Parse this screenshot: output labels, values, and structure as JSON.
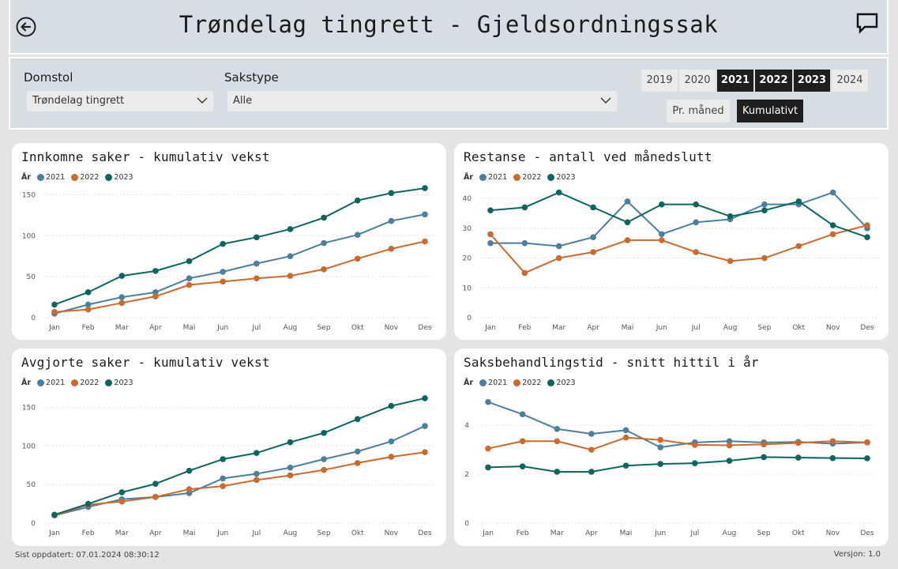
{
  "header": {
    "title": "Trøndelag tingrett - Gjeldsordningssak"
  },
  "filters": {
    "domstol_label": "Domstol",
    "domstol_value": "Trøndelag tingrett",
    "sakstype_label": "Sakstype",
    "sakstype_value": "Alle",
    "years": [
      {
        "label": "2019",
        "selected": false
      },
      {
        "label": "2020",
        "selected": false
      },
      {
        "label": "2021",
        "selected": true
      },
      {
        "label": "2022",
        "selected": true
      },
      {
        "label": "2023",
        "selected": true
      },
      {
        "label": "2024",
        "selected": false
      }
    ],
    "mode_monthly": "Pr. måned",
    "mode_cumulative": "Kumulativt"
  },
  "colors": {
    "2021": "#4a7fa0",
    "2022": "#cc6a2e",
    "2023": "#0c6660"
  },
  "footer": {
    "updated": "Sist oppdatert: 07.01.2024 08:30:12",
    "version": "Versjon: 1.0"
  },
  "chart_data": [
    {
      "type": "line",
      "title": "Innkomne saker - kumulativ vekst",
      "legend_title": "År",
      "categories": [
        "Jan",
        "Feb",
        "Mar",
        "Apr",
        "Mai",
        "Jun",
        "Jul",
        "Aug",
        "Sep",
        "Okt",
        "Nov",
        "Des"
      ],
      "ylim": [
        0,
        160
      ],
      "yticks": [
        0,
        50,
        100,
        150
      ],
      "series": [
        {
          "name": "2021",
          "values": [
            5,
            16,
            25,
            31,
            48,
            56,
            66,
            75,
            91,
            101,
            118,
            126
          ]
        },
        {
          "name": "2022",
          "values": [
            7,
            10,
            18,
            26,
            40,
            44,
            48,
            51,
            59,
            72,
            84,
            93
          ]
        },
        {
          "name": "2023",
          "values": [
            16,
            31,
            51,
            57,
            69,
            90,
            98,
            108,
            122,
            143,
            152,
            158
          ]
        }
      ]
    },
    {
      "type": "line",
      "title": "Restanse - antall ved månedslutt",
      "legend_title": "År",
      "categories": [
        "Jan",
        "Feb",
        "Mar",
        "Apr",
        "Mai",
        "Jun",
        "Jul",
        "Aug",
        "Sep",
        "Okt",
        "Nov",
        "Des"
      ],
      "ylim": [
        0,
        44
      ],
      "yticks": [
        0,
        10,
        20,
        30,
        40
      ],
      "series": [
        {
          "name": "2021",
          "values": [
            25,
            25,
            24,
            27,
            39,
            28,
            32,
            33,
            38,
            38,
            42,
            30
          ]
        },
        {
          "name": "2022",
          "values": [
            28,
            15,
            20,
            22,
            26,
            26,
            22,
            19,
            20,
            24,
            28,
            31
          ]
        },
        {
          "name": "2023",
          "values": [
            36,
            37,
            42,
            37,
            32,
            38,
            38,
            34,
            36,
            39,
            31,
            27
          ]
        }
      ]
    },
    {
      "type": "line",
      "title": "Avgjorte saker - kumulativ vekst",
      "legend_title": "År",
      "categories": [
        "Jan",
        "Feb",
        "Mar",
        "Apr",
        "Mai",
        "Jun",
        "Jul",
        "Aug",
        "Sep",
        "Okt",
        "Nov",
        "Des"
      ],
      "ylim": [
        0,
        165
      ],
      "yticks": [
        0,
        50,
        100,
        150
      ],
      "series": [
        {
          "name": "2021",
          "values": [
            10,
            21,
            31,
            34,
            39,
            58,
            64,
            72,
            83,
            93,
            106,
            126
          ]
        },
        {
          "name": "2022",
          "values": [
            10,
            24,
            28,
            34,
            44,
            48,
            56,
            62,
            69,
            78,
            86,
            92
          ]
        },
        {
          "name": "2023",
          "values": [
            11,
            25,
            40,
            51,
            68,
            83,
            91,
            105,
            117,
            135,
            152,
            162
          ]
        }
      ]
    },
    {
      "type": "line",
      "title": "Saksbehandlingstid - snitt hittil i år",
      "legend_title": "År",
      "categories": [
        "Jan",
        "Feb",
        "Mar",
        "Apr",
        "Mai",
        "Jun",
        "Jul",
        "Aug",
        "Sep",
        "Okt",
        "Nov",
        "Des"
      ],
      "ylim": [
        0,
        5.2
      ],
      "yticks": [
        0,
        2,
        4
      ],
      "series": [
        {
          "name": "2021",
          "values": [
            4.95,
            4.45,
            3.85,
            3.65,
            3.8,
            3.1,
            3.3,
            3.35,
            3.3,
            3.32,
            3.25,
            3.3
          ]
        },
        {
          "name": "2022",
          "values": [
            3.05,
            3.35,
            3.35,
            3.0,
            3.5,
            3.4,
            3.2,
            3.18,
            3.22,
            3.28,
            3.35,
            3.3
          ]
        },
        {
          "name": "2023",
          "values": [
            2.28,
            2.32,
            2.1,
            2.1,
            2.35,
            2.42,
            2.45,
            2.55,
            2.7,
            2.68,
            2.66,
            2.65
          ]
        }
      ]
    }
  ]
}
